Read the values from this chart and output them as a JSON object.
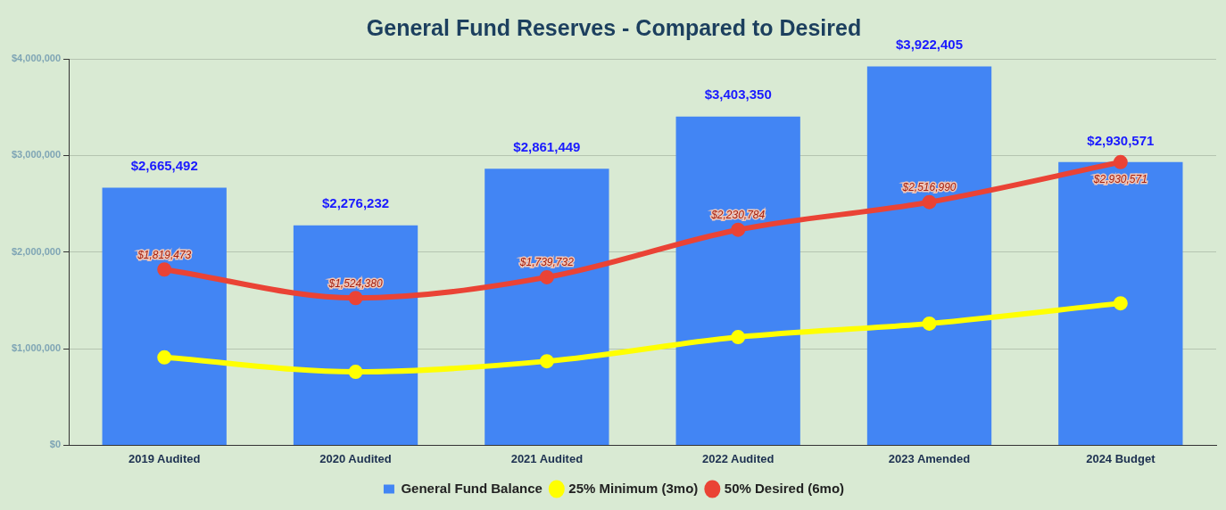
{
  "chart_data": {
    "type": "bar",
    "title": "General Fund Reserves - Compared to Desired",
    "categories": [
      "2019 Audited",
      "2020 Audited",
      "2021 Audited",
      "2022 Audited",
      "2023 Amended",
      "2024 Budget"
    ],
    "series": [
      {
        "name": "General Fund Balance",
        "color": "#4285f4",
        "values": [
          2665492,
          2276232,
          2861449,
          3403350,
          3922405,
          2930571
        ],
        "value_labels": [
          "$2,665,492",
          "$2,276,232",
          "$2,861,449",
          "$3,403,350",
          "$3,922,405",
          "$2,930,571"
        ]
      },
      {
        "name": "25% Minimum (3mo)",
        "type": "line",
        "color": "#ffff00",
        "values": [
          910000,
          760000,
          870000,
          1120000,
          1260000,
          1470000
        ]
      },
      {
        "name": "50% Desired (6mo)",
        "type": "line",
        "color": "#ea4335",
        "values": [
          1819473,
          1524380,
          1739732,
          2230784,
          2516990,
          2930571
        ],
        "value_labels": [
          "$1,819,473",
          "$1,524,380",
          "$1,739,732",
          "$2,230,784",
          "$2,516,990",
          "$2,930,571"
        ]
      }
    ],
    "ylim": [
      0,
      4000000
    ],
    "yticks": [
      {
        "value": 0,
        "label": "$0"
      },
      {
        "value": 1000000,
        "label": "$1,000,000"
      },
      {
        "value": 2000000,
        "label": "$2,000,000"
      },
      {
        "value": 3000000,
        "label": "$3,000,000"
      },
      {
        "value": 4000000,
        "label": "$4,000,000"
      }
    ],
    "grid": "y",
    "legend": "bottom",
    "marker": "circle",
    "line_style": "solid"
  }
}
